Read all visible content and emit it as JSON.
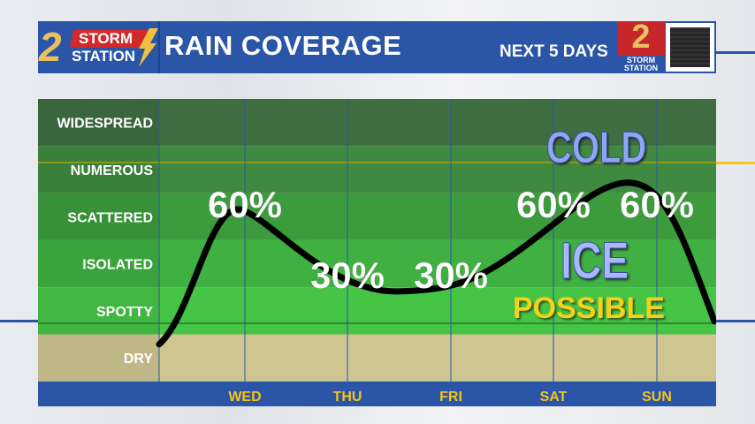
{
  "header": {
    "logo_text_top": "STORM",
    "logo_text_bottom": "STATION",
    "logo_number": "2",
    "title": "RAIN COVERAGE",
    "subtitle": "NEXT 5 DAYS",
    "badge_number": "2",
    "badge_text": "STORM STATION"
  },
  "overlay": {
    "cold": "COLD",
    "ice": "ICE",
    "possible": "POSSIBLE"
  },
  "chart_data": {
    "type": "line",
    "categories": [
      "WED",
      "THU",
      "FRI",
      "SAT",
      "SUN"
    ],
    "y_levels": [
      "DRY",
      "SPOTTY",
      "ISOLATED",
      "SCATTERED",
      "NUMEROUS",
      "WIDESPREAD"
    ],
    "level_colors": [
      "#cfc591",
      "#46c446",
      "#3fb041",
      "#3c9c3d",
      "#3f8a40",
      "#3f6e42"
    ],
    "series": [
      {
        "values": [
          60,
          30,
          30,
          60,
          60
        ],
        "labels": [
          "60%",
          "30%",
          "30%",
          "60%",
          "60%"
        ]
      }
    ],
    "line_color": "#000000",
    "axis_color": "#2b55a6",
    "day_label_color": "#f5c518"
  }
}
